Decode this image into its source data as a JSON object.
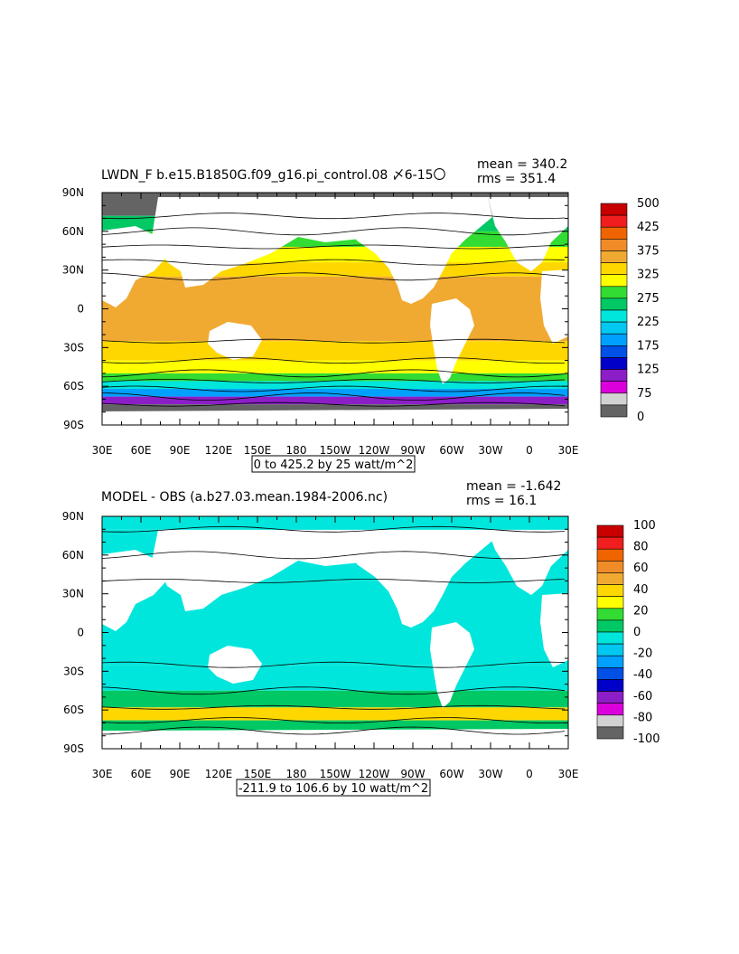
{
  "chart_data": [
    {
      "type": "heatmap",
      "title": "LWDN_F b.e15.B1850G.f09_g16.pi_control.08 〆6-15〇",
      "stats": {
        "mean": "mean = 340.2",
        "rms": "rms = 351.4"
      },
      "contour_info": "0 to 425.2 by 25 watt/m^2",
      "x_ticks": [
        "30E",
        "60E",
        "90E",
        "120E",
        "150E",
        "180",
        "150W",
        "120W",
        "90W",
        "60W",
        "30W",
        "0",
        "30E"
      ],
      "y_ticks": [
        "90N",
        "60N",
        "30N",
        "0",
        "30S",
        "60S",
        "90S"
      ],
      "colorbar": {
        "labels": [
          "500",
          "425",
          "375",
          "325",
          "275",
          "225",
          "175",
          "125",
          "75",
          "0"
        ],
        "colors": [
          "#c80000",
          "#f01e1e",
          "#f06400",
          "#f08c28",
          "#f0aa32",
          "#ffd700",
          "#ffff00",
          "#32dc32",
          "#00c864",
          "#00e6dc",
          "#00c8f0",
          "#00a0ff",
          "#0050e6",
          "#0000c8",
          "#8c1ec8",
          "#dc00dc",
          "#d2d2d2",
          "#646464"
        ]
      },
      "bands": [
        {
          "lat": [
            90,
            72
          ],
          "value": 0
        },
        {
          "lat": [
            72,
            60
          ],
          "value": 275
        },
        {
          "lat": [
            60,
            48
          ],
          "value": 300
        },
        {
          "lat": [
            48,
            36
          ],
          "value": 325
        },
        {
          "lat": [
            36,
            25
          ],
          "value": 350
        },
        {
          "lat": [
            25,
            -25
          ],
          "value": 375
        },
        {
          "lat": [
            -25,
            -40
          ],
          "value": 350
        },
        {
          "lat": [
            -40,
            -50
          ],
          "value": 325
        },
        {
          "lat": [
            -50,
            -56
          ],
          "value": 300
        },
        {
          "lat": [
            -56,
            -62
          ],
          "value": 250
        },
        {
          "lat": [
            -62,
            -68
          ],
          "value": 175
        },
        {
          "lat": [
            -68,
            -74
          ],
          "value": 100
        },
        {
          "lat": [
            -74,
            -90
          ],
          "value": 0
        }
      ]
    },
    {
      "type": "heatmap",
      "title": "MODEL - OBS (a.b27.03.mean.1984-2006.nc)",
      "stats": {
        "mean": "mean = -1.642",
        "rms": "rms = 16.1"
      },
      "contour_info": "-211.9 to 106.6 by 10 watt/m^2",
      "x_ticks": [
        "30E",
        "60E",
        "90E",
        "120E",
        "150E",
        "180",
        "150W",
        "120W",
        "90W",
        "60W",
        "30W",
        "0",
        "30E"
      ],
      "y_ticks": [
        "90N",
        "60N",
        "30N",
        "0",
        "30S",
        "60S",
        "90S"
      ],
      "colorbar": {
        "labels": [
          "100",
          "80",
          "60",
          "40",
          "20",
          "0",
          "-20",
          "-40",
          "-60",
          "-80",
          "-100"
        ],
        "colors": [
          "#c80000",
          "#f01e1e",
          "#f06400",
          "#f08c28",
          "#f0aa32",
          "#ffd700",
          "#ffff00",
          "#32dc32",
          "#00c864",
          "#00e6dc",
          "#00c8f0",
          "#00a0ff",
          "#0050e6",
          "#0000c8",
          "#8c1ec8",
          "#dc00dc",
          "#d2d2d2",
          "#646464"
        ]
      },
      "bands": [
        {
          "lat": [
            90,
            80
          ],
          "value": 0
        },
        {
          "lat": [
            80,
            60
          ],
          "value": -5
        },
        {
          "lat": [
            60,
            40
          ],
          "value": -10
        },
        {
          "lat": [
            40,
            -25
          ],
          "value": -10
        },
        {
          "lat": [
            -25,
            -45
          ],
          "value": 0
        },
        {
          "lat": [
            -45,
            -58
          ],
          "value": 10
        },
        {
          "lat": [
            -58,
            -68
          ],
          "value": 40
        },
        {
          "lat": [
            -68,
            -76
          ],
          "value": 10
        },
        {
          "lat": [
            -76,
            -90
          ],
          "value": -20
        }
      ]
    }
  ]
}
